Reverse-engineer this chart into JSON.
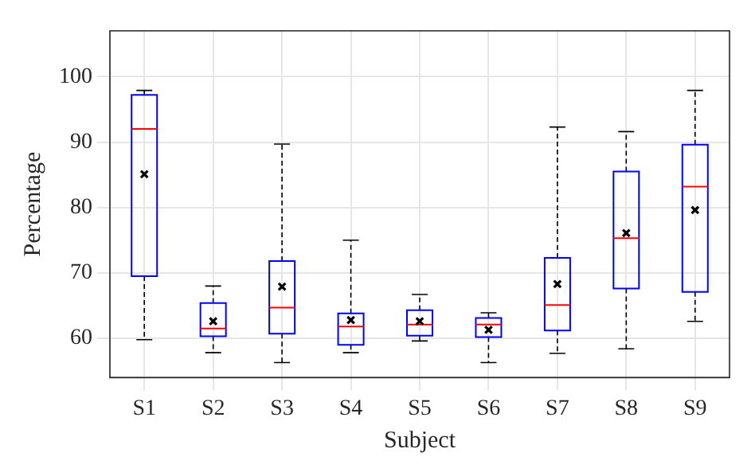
{
  "chart_data": {
    "type": "box",
    "xlabel": "Subject",
    "ylabel": "Percentage",
    "categories": [
      "S1",
      "S2",
      "S3",
      "S4",
      "S5",
      "S6",
      "S7",
      "S8",
      "S9"
    ],
    "ylim": [
      54,
      107
    ],
    "yticks": [
      60,
      70,
      80,
      90,
      100
    ],
    "grid": true,
    "series": [
      {
        "color": "#0000ff",
        "boxes": [
          {
            "low": 59.8,
            "q1": 69.5,
            "median": 92.0,
            "q3": 97.2,
            "high": 97.9
          },
          {
            "low": 57.8,
            "q1": 60.3,
            "median": 61.5,
            "q3": 65.4,
            "high": 68.0
          },
          {
            "low": 56.3,
            "q1": 60.7,
            "median": 64.7,
            "q3": 71.8,
            "high": 89.7
          },
          {
            "low": 57.8,
            "q1": 59.0,
            "median": 61.8,
            "q3": 63.8,
            "high": 75.0
          },
          {
            "low": 59.6,
            "q1": 60.4,
            "median": 62.1,
            "q3": 64.3,
            "high": 66.7
          },
          {
            "low": 56.3,
            "q1": 60.2,
            "median": 62.1,
            "q3": 63.1,
            "high": 63.9
          },
          {
            "low": 57.7,
            "q1": 61.2,
            "median": 65.1,
            "q3": 72.3,
            "high": 92.3
          },
          {
            "low": 58.4,
            "q1": 67.6,
            "median": 75.3,
            "q3": 85.5,
            "high": 91.6
          },
          {
            "low": 62.6,
            "q1": 67.1,
            "median": 83.2,
            "q3": 89.6,
            "high": 97.9
          }
        ]
      },
      {
        "type": "scatter",
        "color": "#000000",
        "marker": "cross",
        "x": [
          "S1",
          "S2",
          "S3",
          "S4",
          "S5",
          "S6",
          "S7",
          "S8",
          "S9"
        ],
        "values": [
          85.1,
          62.6,
          67.9,
          62.8,
          62.6,
          61.3,
          68.3,
          76.1,
          79.6
        ]
      }
    ]
  }
}
